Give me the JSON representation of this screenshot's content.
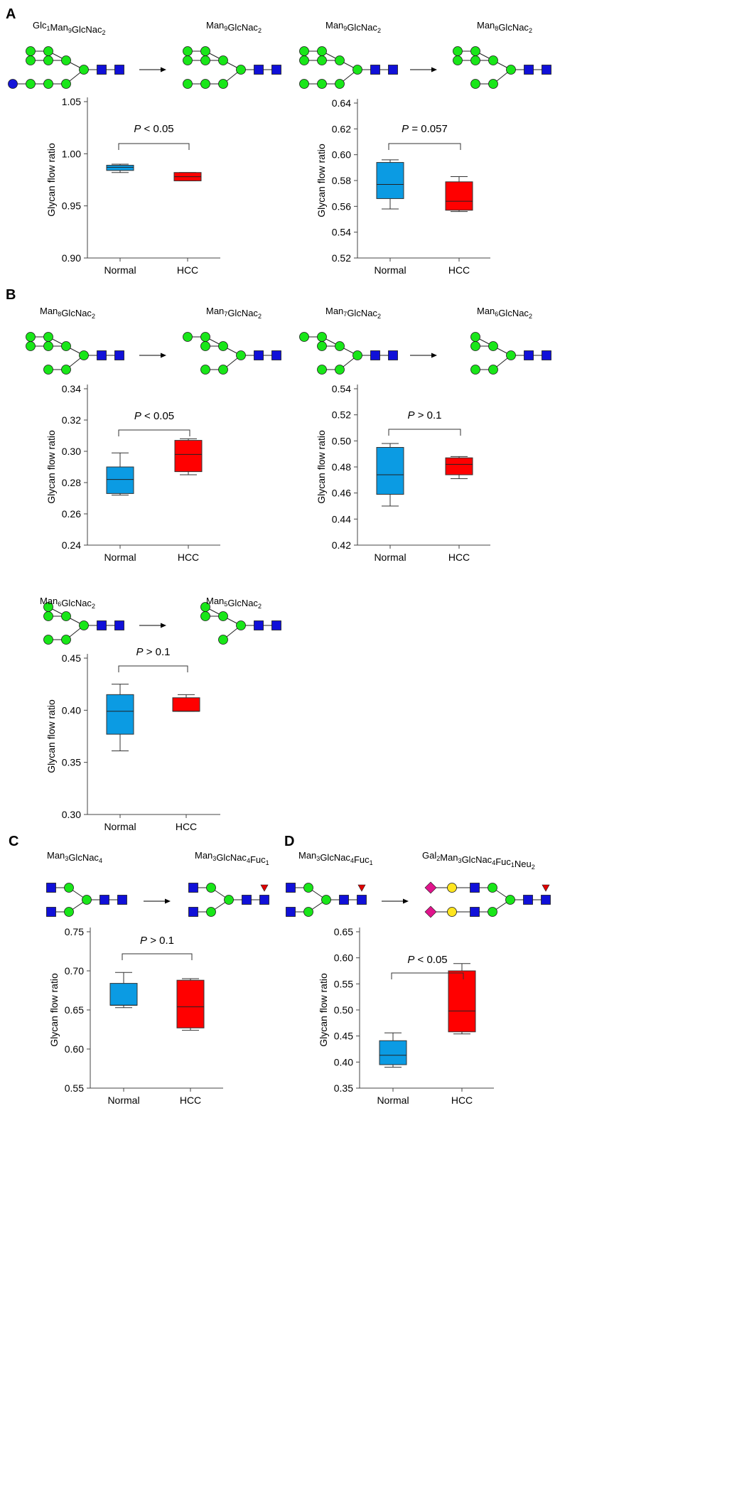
{
  "colors": {
    "normal_box": "#0B9BE3",
    "hcc_box": "#FF0000",
    "mannose": "#19E619",
    "glcnac": "#1010D8",
    "glucose": "#1515D8",
    "fucose": "#E00000",
    "galactose": "#FFE51F",
    "neu5ac": "#E0148C",
    "axis": "#444444"
  },
  "panels": [
    {
      "letter": "A"
    },
    {
      "letter": "B"
    },
    {
      "letter": "C"
    },
    {
      "letter": "D"
    }
  ],
  "glycan_labels": [
    {
      "id": "a1-from",
      "base": "Glc",
      "parts": [
        [
          "Glc",
          "1"
        ],
        [
          "Man",
          "9"
        ],
        [
          "GlcNac",
          "2"
        ]
      ]
    },
    {
      "id": "a1-to",
      "parts": [
        [
          "Man",
          "9"
        ],
        [
          "GlcNac",
          "2"
        ]
      ]
    },
    {
      "id": "a2-from",
      "parts": [
        [
          "Man",
          "9"
        ],
        [
          "GlcNac",
          "2"
        ]
      ]
    },
    {
      "id": "a2-to",
      "parts": [
        [
          "Man",
          "8"
        ],
        [
          "GlcNac",
          "2"
        ]
      ]
    },
    {
      "id": "b1-from",
      "parts": [
        [
          "Man",
          "8"
        ],
        [
          "GlcNac",
          "2"
        ]
      ]
    },
    {
      "id": "b1-to",
      "parts": [
        [
          "Man",
          "7"
        ],
        [
          "GlcNac",
          "2"
        ]
      ]
    },
    {
      "id": "b2-from",
      "parts": [
        [
          "Man",
          "7"
        ],
        [
          "GlcNac",
          "2"
        ]
      ]
    },
    {
      "id": "b2-to",
      "parts": [
        [
          "Man",
          "6"
        ],
        [
          "GlcNac",
          "2"
        ]
      ]
    },
    {
      "id": "b3-from",
      "parts": [
        [
          "Man",
          "6"
        ],
        [
          "GlcNac",
          "2"
        ]
      ]
    },
    {
      "id": "b3-to",
      "parts": [
        [
          "Man",
          "5"
        ],
        [
          "GlcNac",
          "2"
        ]
      ]
    },
    {
      "id": "c1-from",
      "parts": [
        [
          "Man",
          "3"
        ],
        [
          "GlcNac",
          "4"
        ]
      ]
    },
    {
      "id": "c1-to",
      "parts": [
        [
          "Man",
          "3"
        ],
        [
          "GlcNac",
          "4"
        ],
        [
          "Fuc",
          "1"
        ]
      ]
    },
    {
      "id": "d1-from",
      "parts": [
        [
          "Man",
          "3"
        ],
        [
          "GlcNac",
          "4"
        ],
        [
          "Fuc",
          "1"
        ]
      ]
    },
    {
      "id": "d1-to",
      "parts": [
        [
          "Gal",
          "2"
        ],
        [
          "Man",
          "3"
        ],
        [
          "GlcNac",
          "4"
        ],
        [
          "Fuc",
          "1"
        ],
        [
          "Neu",
          "2"
        ]
      ]
    }
  ],
  "chart_data": [
    {
      "id": "A1",
      "type": "box",
      "categories": [
        "Normal",
        "HCC"
      ],
      "ylabel": "Glycan flow ratio",
      "ylim": [
        0.9,
        1.05
      ],
      "yticks": [
        0.9,
        0.95,
        1.0,
        1.05
      ],
      "tick_labels": [
        "0.90",
        "0.95",
        "1.00",
        "1.05"
      ],
      "pvalue": "< 0.05",
      "boxes": [
        {
          "category": "Normal",
          "min": 0.982,
          "q1": 0.984,
          "median": 0.987,
          "q3": 0.989,
          "max": 0.99
        },
        {
          "category": "HCC",
          "min": 0.974,
          "q1": 0.974,
          "median": 0.978,
          "q3": 0.982,
          "max": 0.982
        }
      ]
    },
    {
      "id": "A2",
      "type": "box",
      "categories": [
        "Normal",
        "HCC"
      ],
      "ylabel": "Glycan flow ratio",
      "ylim": [
        0.52,
        0.64
      ],
      "yticks": [
        0.52,
        0.54,
        0.56,
        0.58,
        0.6,
        0.62,
        0.64
      ],
      "tick_labels": [
        "0.52",
        "0.54",
        "0.56",
        "0.58",
        "0.60",
        "0.62",
        "0.64"
      ],
      "pvalue": "= 0.057",
      "boxes": [
        {
          "category": "Normal",
          "min": 0.558,
          "q1": 0.566,
          "median": 0.577,
          "q3": 0.594,
          "max": 0.596
        },
        {
          "category": "HCC",
          "min": 0.556,
          "q1": 0.557,
          "median": 0.564,
          "q3": 0.579,
          "max": 0.583
        }
      ]
    },
    {
      "id": "B1",
      "type": "box",
      "categories": [
        "Normal",
        "HCC"
      ],
      "ylabel": "Glycan flow ratio",
      "ylim": [
        0.24,
        0.34
      ],
      "yticks": [
        0.24,
        0.26,
        0.28,
        0.3,
        0.32,
        0.34
      ],
      "tick_labels": [
        "0.24",
        "0.26",
        "0.28",
        "0.30",
        "0.32",
        "0.34"
      ],
      "pvalue": "< 0.05",
      "boxes": [
        {
          "category": "Normal",
          "min": 0.272,
          "q1": 0.273,
          "median": 0.282,
          "q3": 0.29,
          "max": 0.299
        },
        {
          "category": "HCC",
          "min": 0.285,
          "q1": 0.287,
          "median": 0.298,
          "q3": 0.307,
          "max": 0.308
        }
      ]
    },
    {
      "id": "B2",
      "type": "box",
      "categories": [
        "Normal",
        "HCC"
      ],
      "ylabel": "Glycan flow ratio",
      "ylim": [
        0.42,
        0.54
      ],
      "yticks": [
        0.42,
        0.44,
        0.46,
        0.48,
        0.5,
        0.52,
        0.54
      ],
      "tick_labels": [
        "0.42",
        "0.44",
        "0.46",
        "0.48",
        "0.50",
        "0.52",
        "0.54"
      ],
      "pvalue": "> 0.1",
      "boxes": [
        {
          "category": "Normal",
          "min": 0.45,
          "q1": 0.459,
          "median": 0.474,
          "q3": 0.495,
          "max": 0.498
        },
        {
          "category": "HCC",
          "min": 0.471,
          "q1": 0.474,
          "median": 0.482,
          "q3": 0.487,
          "max": 0.488
        }
      ]
    },
    {
      "id": "B3",
      "type": "box",
      "categories": [
        "Normal",
        "HCC"
      ],
      "ylabel": "Glycan flow ratio",
      "ylim": [
        0.3,
        0.45
      ],
      "yticks": [
        0.3,
        0.35,
        0.4,
        0.45
      ],
      "tick_labels": [
        "0.30",
        "0.35",
        "0.40",
        "0.45"
      ],
      "pvalue": "> 0.1",
      "boxes": [
        {
          "category": "Normal",
          "min": 0.361,
          "q1": 0.377,
          "median": 0.399,
          "q3": 0.415,
          "max": 0.425
        },
        {
          "category": "HCC",
          "min": 0.399,
          "q1": 0.399,
          "median": 0.399,
          "q3": 0.412,
          "max": 0.415
        }
      ]
    },
    {
      "id": "C1",
      "type": "box",
      "categories": [
        "Normal",
        "HCC"
      ],
      "ylabel": "Glycan flow ratio",
      "ylim": [
        0.55,
        0.75
      ],
      "yticks": [
        0.55,
        0.6,
        0.65,
        0.7,
        0.75
      ],
      "tick_labels": [
        "0.55",
        "0.60",
        "0.65",
        "0.70",
        "0.75"
      ],
      "pvalue": "> 0.1",
      "boxes": [
        {
          "category": "Normal",
          "min": 0.653,
          "q1": 0.656,
          "median": 0.656,
          "q3": 0.684,
          "max": 0.698
        },
        {
          "category": "HCC",
          "min": 0.624,
          "q1": 0.627,
          "median": 0.654,
          "q3": 0.688,
          "max": 0.69
        }
      ]
    },
    {
      "id": "D1",
      "type": "box",
      "categories": [
        "Normal",
        "HCC"
      ],
      "ylabel": "Glycan flow ratio",
      "ylim": [
        0.35,
        0.65
      ],
      "yticks": [
        0.35,
        0.4,
        0.45,
        0.5,
        0.55,
        0.6,
        0.65
      ],
      "tick_labels": [
        "0.35",
        "0.40",
        "0.45",
        "0.50",
        "0.55",
        "0.60",
        "0.65"
      ],
      "pvalue": "< 0.05",
      "boxes": [
        {
          "category": "Normal",
          "min": 0.39,
          "q1": 0.395,
          "median": 0.413,
          "q3": 0.441,
          "max": 0.456
        },
        {
          "category": "HCC",
          "min": 0.454,
          "q1": 0.458,
          "median": 0.498,
          "q3": 0.575,
          "max": 0.589
        }
      ]
    }
  ]
}
